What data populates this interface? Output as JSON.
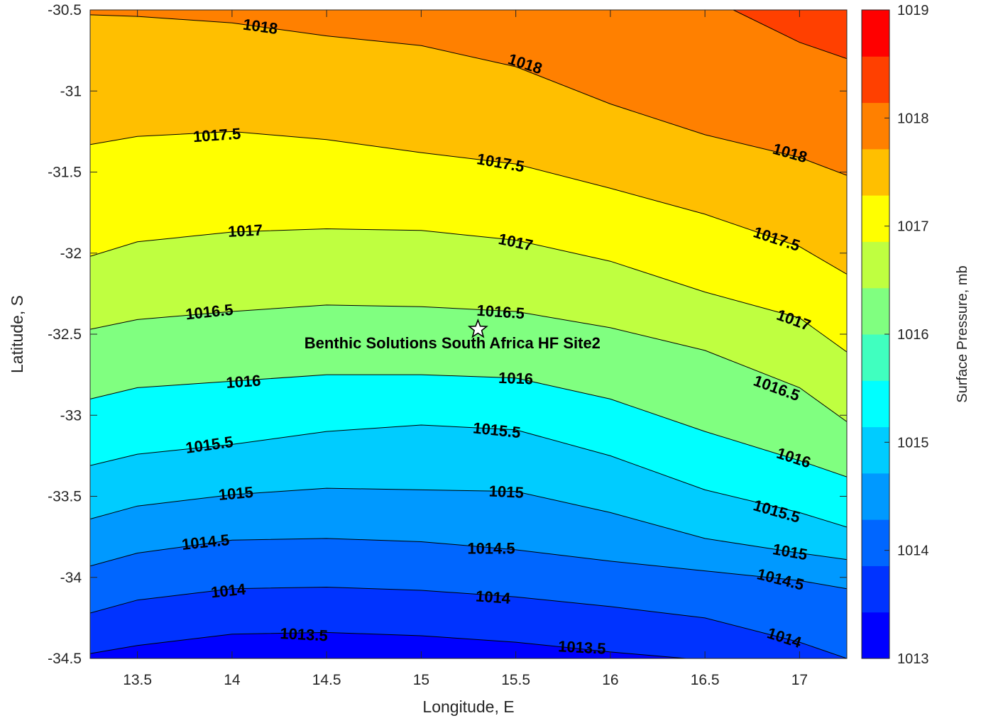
{
  "chart_data": {
    "type": "contour",
    "xlabel": "Longitude, E",
    "ylabel": "Latitude, S",
    "xlim": [
      13.25,
      17.25
    ],
    "ylim": [
      -34.5,
      -30.5
    ],
    "x_ticks": [
      "13.5",
      "14",
      "14.5",
      "15",
      "15.5",
      "16",
      "16.5",
      "17"
    ],
    "x_tick_values": [
      13.5,
      14,
      14.5,
      15,
      15.5,
      16,
      16.5,
      17
    ],
    "y_ticks": [
      "-30.5",
      "-31",
      "-31.5",
      "-32",
      "-32.5",
      "-33",
      "-33.5",
      "-34",
      "-34.5"
    ],
    "y_tick_values": [
      -30.5,
      -31,
      -31.5,
      -32,
      -32.5,
      -33,
      -33.5,
      -34,
      -34.5
    ],
    "contour_levels": [
      1013.5,
      1014,
      1014.5,
      1015,
      1015.5,
      1016,
      1016.5,
      1017,
      1017.5,
      1018,
      1018.5
    ],
    "contours": [
      {
        "level": 1013.5,
        "points": [
          [
            13.25,
            -34.47
          ],
          [
            13.5,
            -34.42
          ],
          [
            14,
            -34.35
          ],
          [
            14.5,
            -34.34
          ],
          [
            15,
            -34.36
          ],
          [
            15.5,
            -34.4
          ],
          [
            16,
            -34.46
          ],
          [
            16.4,
            -34.5
          ]
        ]
      },
      {
        "level": 1014,
        "points": [
          [
            13.25,
            -34.22
          ],
          [
            13.5,
            -34.14
          ],
          [
            14,
            -34.07
          ],
          [
            14.5,
            -34.06
          ],
          [
            15,
            -34.08
          ],
          [
            15.5,
            -34.12
          ],
          [
            16,
            -34.18
          ],
          [
            16.5,
            -34.25
          ],
          [
            17,
            -34.4
          ],
          [
            17.25,
            -34.5
          ]
        ]
      },
      {
        "level": 1014.5,
        "points": [
          [
            13.25,
            -33.93
          ],
          [
            13.5,
            -33.85
          ],
          [
            14,
            -33.77
          ],
          [
            14.5,
            -33.76
          ],
          [
            15,
            -33.78
          ],
          [
            15.5,
            -33.83
          ],
          [
            16,
            -33.9
          ],
          [
            16.5,
            -33.96
          ],
          [
            17,
            -34.02
          ],
          [
            17.25,
            -34.07
          ]
        ]
      },
      {
        "level": 1015,
        "points": [
          [
            13.25,
            -33.64
          ],
          [
            13.5,
            -33.56
          ],
          [
            14,
            -33.49
          ],
          [
            14.5,
            -33.45
          ],
          [
            15,
            -33.46
          ],
          [
            15.5,
            -33.47
          ],
          [
            16,
            -33.6
          ],
          [
            16.5,
            -33.76
          ],
          [
            17,
            -33.85
          ],
          [
            17.25,
            -33.89
          ]
        ]
      },
      {
        "level": 1015.5,
        "points": [
          [
            13.25,
            -33.31
          ],
          [
            13.5,
            -33.24
          ],
          [
            14,
            -33.18
          ],
          [
            14.5,
            -33.1
          ],
          [
            15,
            -33.06
          ],
          [
            15.5,
            -33.09
          ],
          [
            16,
            -33.25
          ],
          [
            16.5,
            -33.46
          ],
          [
            17,
            -33.6
          ],
          [
            17.25,
            -33.69
          ]
        ]
      },
      {
        "level": 1016,
        "points": [
          [
            13.25,
            -32.9
          ],
          [
            13.5,
            -32.83
          ],
          [
            14,
            -32.79
          ],
          [
            14.5,
            -32.75
          ],
          [
            15,
            -32.75
          ],
          [
            15.5,
            -32.77
          ],
          [
            16,
            -32.9
          ],
          [
            16.5,
            -33.1
          ],
          [
            17,
            -33.28
          ],
          [
            17.25,
            -33.38
          ]
        ]
      },
      {
        "level": 1016.5,
        "points": [
          [
            13.25,
            -32.47
          ],
          [
            13.5,
            -32.41
          ],
          [
            14,
            -32.36
          ],
          [
            14.5,
            -32.32
          ],
          [
            15,
            -32.33
          ],
          [
            15.5,
            -32.36
          ],
          [
            16,
            -32.46
          ],
          [
            16.5,
            -32.6
          ],
          [
            17,
            -32.83
          ],
          [
            17.25,
            -33.04
          ]
        ]
      },
      {
        "level": 1017,
        "points": [
          [
            13.25,
            -32.02
          ],
          [
            13.5,
            -31.93
          ],
          [
            14,
            -31.87
          ],
          [
            14.5,
            -31.85
          ],
          [
            15,
            -31.86
          ],
          [
            15.5,
            -31.92
          ],
          [
            16,
            -32.05
          ],
          [
            16.5,
            -32.24
          ],
          [
            17,
            -32.4
          ],
          [
            17.25,
            -32.61
          ]
        ]
      },
      {
        "level": 1017.5,
        "points": [
          [
            13.25,
            -31.33
          ],
          [
            13.5,
            -31.28
          ],
          [
            14,
            -31.25
          ],
          [
            14.5,
            -31.3
          ],
          [
            15,
            -31.38
          ],
          [
            15.5,
            -31.45
          ],
          [
            16,
            -31.6
          ],
          [
            16.5,
            -31.76
          ],
          [
            17,
            -31.96
          ],
          [
            17.25,
            -32.13
          ]
        ]
      },
      {
        "level": 1018,
        "points": [
          [
            13.25,
            -30.53
          ],
          [
            13.5,
            -30.54
          ],
          [
            14,
            -30.58
          ],
          [
            14.5,
            -30.66
          ],
          [
            15,
            -30.72
          ],
          [
            15.5,
            -30.85
          ],
          [
            16,
            -31.08
          ],
          [
            16.5,
            -31.27
          ],
          [
            17,
            -31.41
          ],
          [
            17.25,
            -31.52
          ]
        ]
      },
      {
        "level": 1018.5,
        "points": [
          [
            16.65,
            -30.5
          ],
          [
            17,
            -30.7
          ],
          [
            17.25,
            -30.8
          ]
        ]
      }
    ],
    "contour_labels": [
      {
        "text": "1018",
        "x": 14.15,
        "y": -30.6,
        "angle": 8
      },
      {
        "text": "1018",
        "x": 15.55,
        "y": -30.83,
        "angle": 18
      },
      {
        "text": "1018",
        "x": 16.95,
        "y": -31.38,
        "angle": 16
      },
      {
        "text": "1017.5",
        "x": 13.92,
        "y": -31.27,
        "angle": -4
      },
      {
        "text": "1017.5",
        "x": 15.42,
        "y": -31.44,
        "angle": 10
      },
      {
        "text": "1017.5",
        "x": 16.88,
        "y": -31.91,
        "angle": 18
      },
      {
        "text": "1017",
        "x": 14.07,
        "y": -31.86,
        "angle": -3
      },
      {
        "text": "1017",
        "x": 15.5,
        "y": -31.93,
        "angle": 12
      },
      {
        "text": "1017",
        "x": 16.97,
        "y": -32.41,
        "angle": 20
      },
      {
        "text": "1016.5",
        "x": 13.88,
        "y": -32.36,
        "angle": -6
      },
      {
        "text": "1016.5",
        "x": 15.42,
        "y": -32.36,
        "angle": 4
      },
      {
        "text": "1016.5",
        "x": 16.88,
        "y": -32.83,
        "angle": 20
      },
      {
        "text": "1016",
        "x": 14.06,
        "y": -32.79,
        "angle": -4
      },
      {
        "text": "1016",
        "x": 15.5,
        "y": -32.77,
        "angle": 2
      },
      {
        "text": "1016",
        "x": 16.97,
        "y": -33.26,
        "angle": 18
      },
      {
        "text": "1015.5",
        "x": 13.88,
        "y": -33.18,
        "angle": -8
      },
      {
        "text": "1015.5",
        "x": 15.4,
        "y": -33.09,
        "angle": 6
      },
      {
        "text": "1015.5",
        "x": 16.88,
        "y": -33.59,
        "angle": 16
      },
      {
        "text": "1015",
        "x": 14.02,
        "y": -33.48,
        "angle": -5
      },
      {
        "text": "1015",
        "x": 15.45,
        "y": -33.47,
        "angle": 3
      },
      {
        "text": "1015",
        "x": 16.95,
        "y": -33.84,
        "angle": 10
      },
      {
        "text": "1014.5",
        "x": 13.86,
        "y": -33.78,
        "angle": -6
      },
      {
        "text": "1014.5",
        "x": 15.37,
        "y": -33.82,
        "angle": 0
      },
      {
        "text": "1014.5",
        "x": 16.9,
        "y": -34.01,
        "angle": 14
      },
      {
        "text": "1014",
        "x": 13.98,
        "y": -34.08,
        "angle": -6
      },
      {
        "text": "1014",
        "x": 15.38,
        "y": -34.12,
        "angle": 4
      },
      {
        "text": "1014",
        "x": 16.92,
        "y": -34.37,
        "angle": 18
      },
      {
        "text": "1013.5",
        "x": 14.38,
        "y": -34.35,
        "angle": 3
      },
      {
        "text": "1013.5",
        "x": 15.85,
        "y": -34.43,
        "angle": 3
      }
    ],
    "site": {
      "name": "Benthic Solutions South Africa HF Site2",
      "lon": 15.3,
      "lat": -32.47
    },
    "colorbar": {
      "label": "Surface Pressure, mb",
      "range": [
        1013,
        1019
      ],
      "tick_values": [
        1013,
        1014,
        1015,
        1016,
        1017,
        1018,
        1019
      ],
      "ticks": [
        "1013",
        "1014",
        "1015",
        "1016",
        "1017",
        "1018",
        "1019"
      ],
      "colors": [
        "#0000FF",
        "#0033FF",
        "#0066FF",
        "#0099FF",
        "#00CCFF",
        "#00FFFF",
        "#40FFBF",
        "#80FF80",
        "#BFFF40",
        "#FFFF00",
        "#FFBF00",
        "#FF8000",
        "#FF4000",
        "#FF0000"
      ]
    }
  }
}
